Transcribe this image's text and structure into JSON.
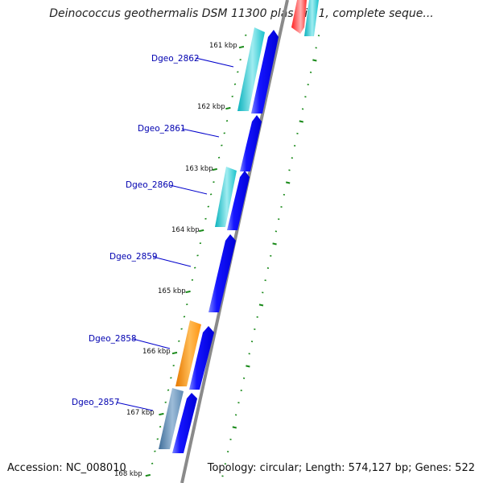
{
  "title": "Deinococcus geothermalis DSM 11300 plasmid 1, complete seque...",
  "footer": {
    "accession": "Accession: NC_008010",
    "summary": "Topology: circular; Length: 574,127 bp; Genes: 522"
  },
  "ticks": [
    "161 kbp",
    "162 kbp",
    "163 kbp",
    "164 kbp",
    "165 kbp",
    "166 kbp",
    "167 kbp",
    "168 kbp"
  ],
  "genes": [
    {
      "name": "Dgeo_2862"
    },
    {
      "name": "Dgeo_2861"
    },
    {
      "name": "Dgeo_2860"
    },
    {
      "name": "Dgeo_2859"
    },
    {
      "name": "Dgeo_2858"
    },
    {
      "name": "Dgeo_2857"
    }
  ],
  "colors": {
    "cds": "#0000ee",
    "cds_highlight": "#6e7cff",
    "feature_cyan": "#00b7c4",
    "feature_cyan_light": "#8fe8ee",
    "feature_orange": "#ff8c00",
    "feature_orange_light": "#ffc060",
    "feature_steel": "#4a7aa5",
    "feature_steel_light": "#9bbbd8",
    "feature_red": "#ff1a1a",
    "backbone": "#8a8a8a",
    "tick": "#1a8a1a",
    "label": "#0000b0"
  }
}
